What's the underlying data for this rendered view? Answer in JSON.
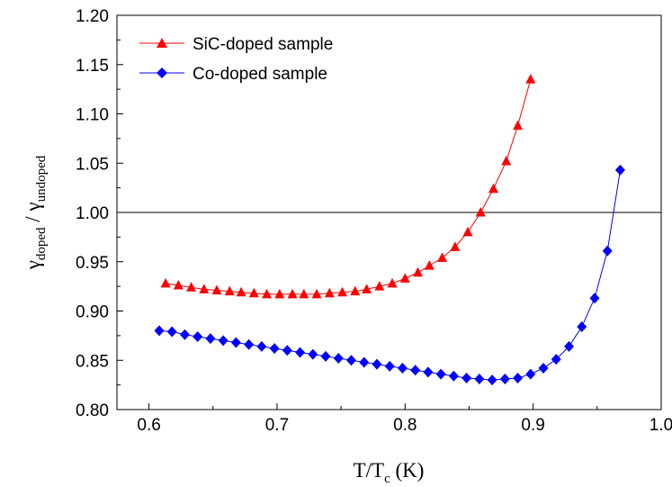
{
  "chart_data": {
    "type": "line",
    "xlabel": {
      "main": "T/T",
      "sub": "c",
      "unit": " (K)"
    },
    "ylabel": {
      "num": "γ",
      "num_sub": "doped",
      "sep": " / ",
      "den": "γ",
      "den_sub": "undoped"
    },
    "xlim": [
      0.575,
      1.0
    ],
    "ylim": [
      0.8,
      1.2
    ],
    "x_ticks": [
      "0.6",
      "0.7",
      "0.8",
      "0.9",
      "1.0"
    ],
    "y_ticks": [
      "0.80",
      "0.85",
      "0.90",
      "0.95",
      "1.00",
      "1.05",
      "1.10",
      "1.15",
      "1.20"
    ],
    "reference_line_y": 1.0,
    "grid": false,
    "legend_position": "top-left",
    "series": [
      {
        "name": "SiC-doped sample",
        "color": "#ff0000",
        "marker": "triangle",
        "x": [
          0.613,
          0.623,
          0.633,
          0.643,
          0.653,
          0.663,
          0.672,
          0.682,
          0.692,
          0.702,
          0.712,
          0.721,
          0.731,
          0.741,
          0.751,
          0.761,
          0.77,
          0.78,
          0.79,
          0.8,
          0.81,
          0.819,
          0.829,
          0.839,
          0.849,
          0.859,
          0.869,
          0.879,
          0.888,
          0.898
        ],
        "y": [
          0.928,
          0.926,
          0.924,
          0.922,
          0.921,
          0.92,
          0.919,
          0.918,
          0.917,
          0.917,
          0.917,
          0.917,
          0.917,
          0.918,
          0.919,
          0.92,
          0.922,
          0.925,
          0.928,
          0.933,
          0.939,
          0.946,
          0.954,
          0.965,
          0.98,
          1.0,
          1.024,
          1.052,
          1.088,
          1.135
        ]
      },
      {
        "name": "Co-doped sample",
        "color": "#0000ff",
        "marker": "diamond",
        "x": [
          0.608,
          0.618,
          0.628,
          0.638,
          0.648,
          0.658,
          0.668,
          0.678,
          0.688,
          0.698,
          0.708,
          0.718,
          0.728,
          0.738,
          0.748,
          0.758,
          0.768,
          0.778,
          0.788,
          0.798,
          0.808,
          0.818,
          0.828,
          0.838,
          0.848,
          0.858,
          0.868,
          0.878,
          0.888,
          0.898,
          0.908,
          0.918,
          0.928,
          0.938,
          0.948,
          0.958,
          0.968
        ],
        "y": [
          0.88,
          0.879,
          0.876,
          0.874,
          0.872,
          0.87,
          0.868,
          0.866,
          0.864,
          0.862,
          0.86,
          0.858,
          0.856,
          0.854,
          0.852,
          0.85,
          0.848,
          0.846,
          0.844,
          0.842,
          0.84,
          0.838,
          0.836,
          0.834,
          0.832,
          0.831,
          0.83,
          0.831,
          0.832,
          0.836,
          0.842,
          0.851,
          0.864,
          0.884,
          0.913,
          0.961,
          1.043
        ]
      }
    ]
  }
}
